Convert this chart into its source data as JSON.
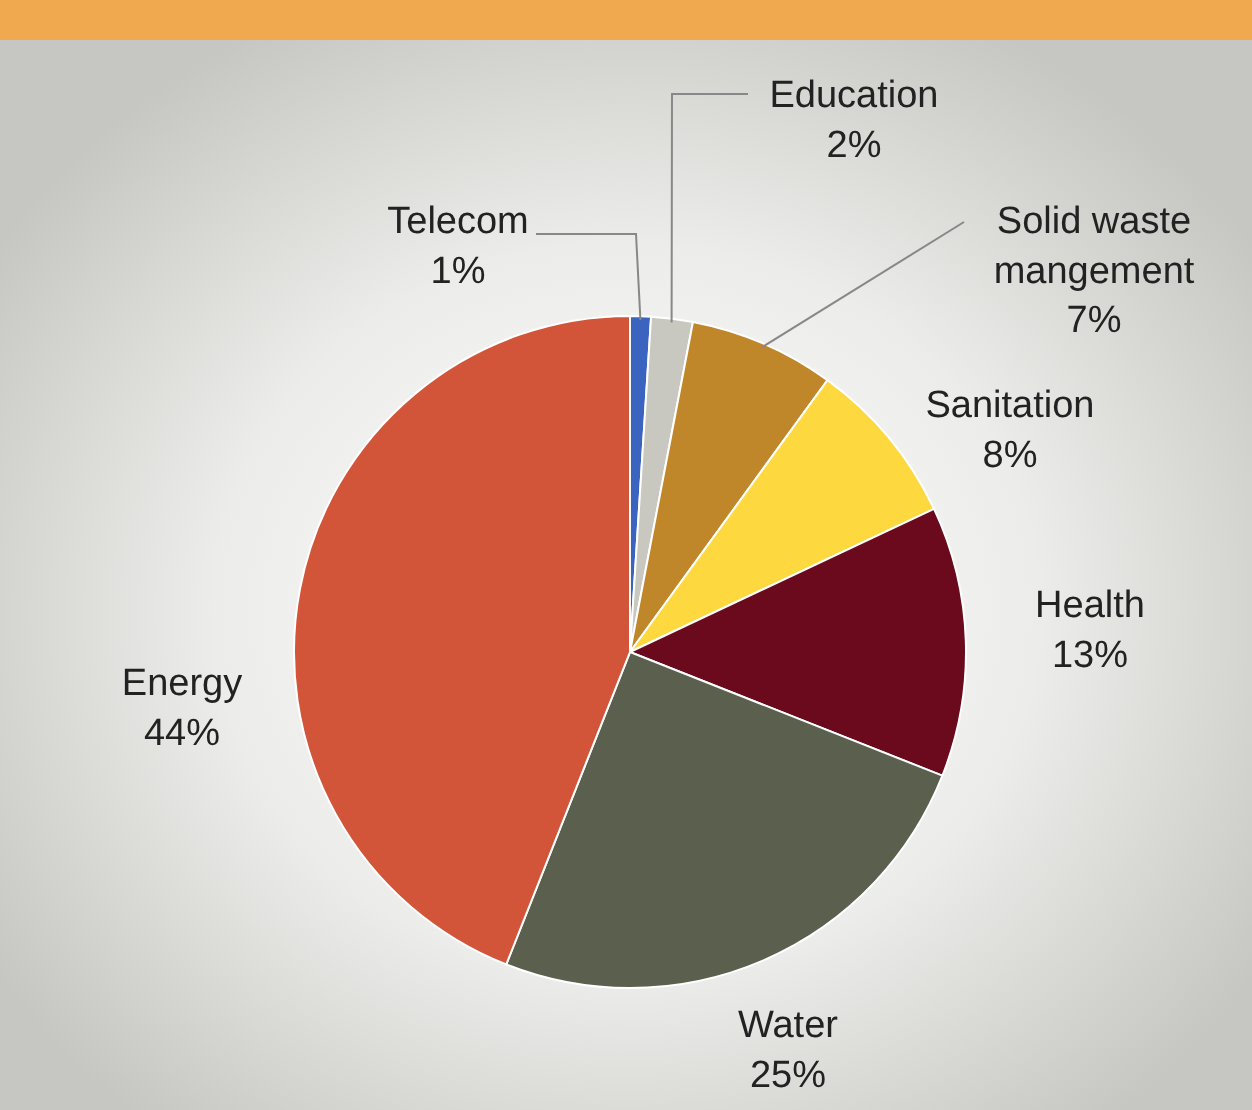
{
  "chart_data": {
    "type": "pie",
    "categories": [
      "Telecom",
      "Education",
      "Solid waste mangement",
      "Sanitation",
      "Health",
      "Water",
      "Energy"
    ],
    "values": [
      1,
      2,
      7,
      8,
      13,
      25,
      44
    ],
    "value_labels": [
      "1%",
      "2%",
      "7%",
      "8%",
      "13%",
      "25%",
      "44%"
    ],
    "colors": [
      "#3a64c0",
      "#c8c8c0",
      "#c0862a",
      "#fdd83f",
      "#6b0a1c",
      "#5a5f4e",
      "#d2553a"
    ]
  }
}
